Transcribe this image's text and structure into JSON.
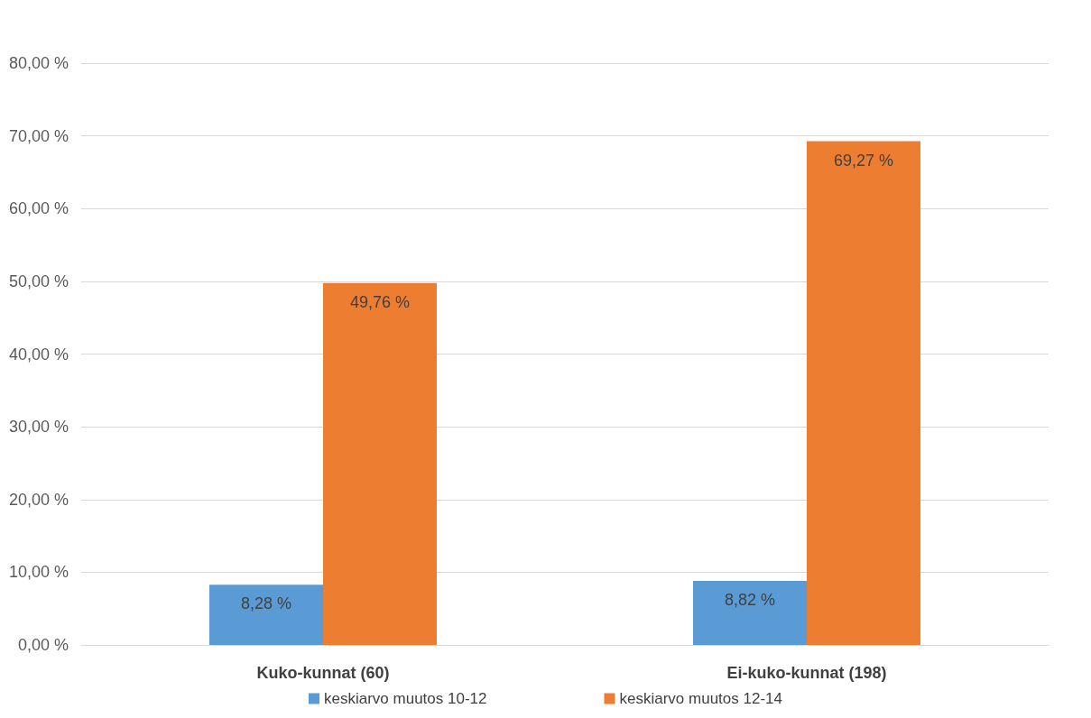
{
  "chart_data": {
    "type": "bar",
    "categories": [
      "Kuko-kunnat (60)",
      "Ei-kuko-kunnat (198)"
    ],
    "series": [
      {
        "name": "keskiarvo muutos 10-12",
        "color": "#5b9bd5",
        "values": [
          8.28,
          8.82
        ],
        "value_labels": [
          "8,28 %",
          "8,82 %"
        ]
      },
      {
        "name": "keskiarvo muutos 12-14",
        "color": "#ed7d31",
        "values": [
          49.76,
          69.27
        ],
        "value_labels": [
          "49,76 %",
          "69,27 %"
        ]
      }
    ],
    "ylim": [
      0,
      80
    ],
    "yticks": [
      {
        "value": 0,
        "label": "0,00 %"
      },
      {
        "value": 10,
        "label": "10,00 %"
      },
      {
        "value": 20,
        "label": "20,00 %"
      },
      {
        "value": 30,
        "label": "30,00 %"
      },
      {
        "value": 40,
        "label": "40,00 %"
      },
      {
        "value": 50,
        "label": "50,00 %"
      },
      {
        "value": 60,
        "label": "60,00 %"
      },
      {
        "value": 70,
        "label": "70,00 %"
      },
      {
        "value": 80,
        "label": "80,00 %"
      }
    ],
    "grid": "y",
    "legend": "bottom"
  }
}
